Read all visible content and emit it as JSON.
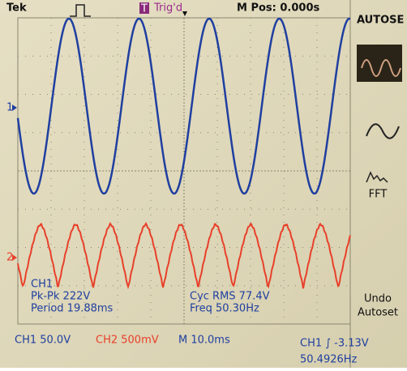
{
  "header": {
    "brand": "Tek",
    "trigger_icon": "T",
    "status": "Trig'd",
    "position": "M Pos: 0.000s"
  },
  "markers": {
    "ch1": "1",
    "ch2": "2"
  },
  "measurements": {
    "source": "CH1",
    "pk_pk": "Pk-Pk 222V",
    "period": "Period 19.88ms",
    "cyc_rms": "Cyc RMS 77.4V",
    "freq": "Freq 50.30Hz"
  },
  "menu": {
    "title": "AUTOSE",
    "fft": "FFT",
    "undo": [
      "Undo",
      "Autoset"
    ]
  },
  "footer": {
    "ch1_scale": "CH1 50.0V",
    "ch2_scale": "CH2 500mV",
    "time_scale": "M 10.0ms",
    "trigger": "CH1 ∫ -3.13V",
    "trigger_freq": "50.4926Hz"
  }
}
